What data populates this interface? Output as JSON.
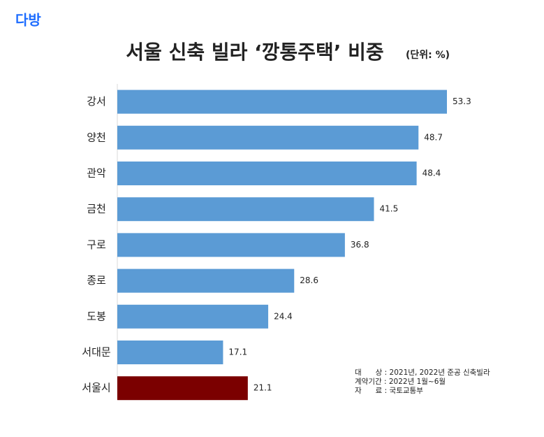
{
  "logo": "다방",
  "chart_data": {
    "type": "bar",
    "orientation": "horizontal",
    "title": "서울 신축 빌라 ‘깡통주택’ 비중",
    "subtitle": "(단위: %)",
    "categories": [
      "강서",
      "양천",
      "관악",
      "금천",
      "구로",
      "종로",
      "도봉",
      "서대문",
      "서울시"
    ],
    "values": [
      53.3,
      48.7,
      48.4,
      41.5,
      36.8,
      28.6,
      24.4,
      17.1,
      21.1
    ],
    "colors": [
      "#5b9bd5",
      "#5b9bd5",
      "#5b9bd5",
      "#5b9bd5",
      "#5b9bd5",
      "#5b9bd5",
      "#5b9bd5",
      "#5b9bd5",
      "#7b0000"
    ],
    "notes": [
      "대      상 : 2021년, 2022년 준공 신축빌라",
      "계약기간 : 2022년 1월~6월",
      "자      료 : 국토교통부"
    ]
  }
}
